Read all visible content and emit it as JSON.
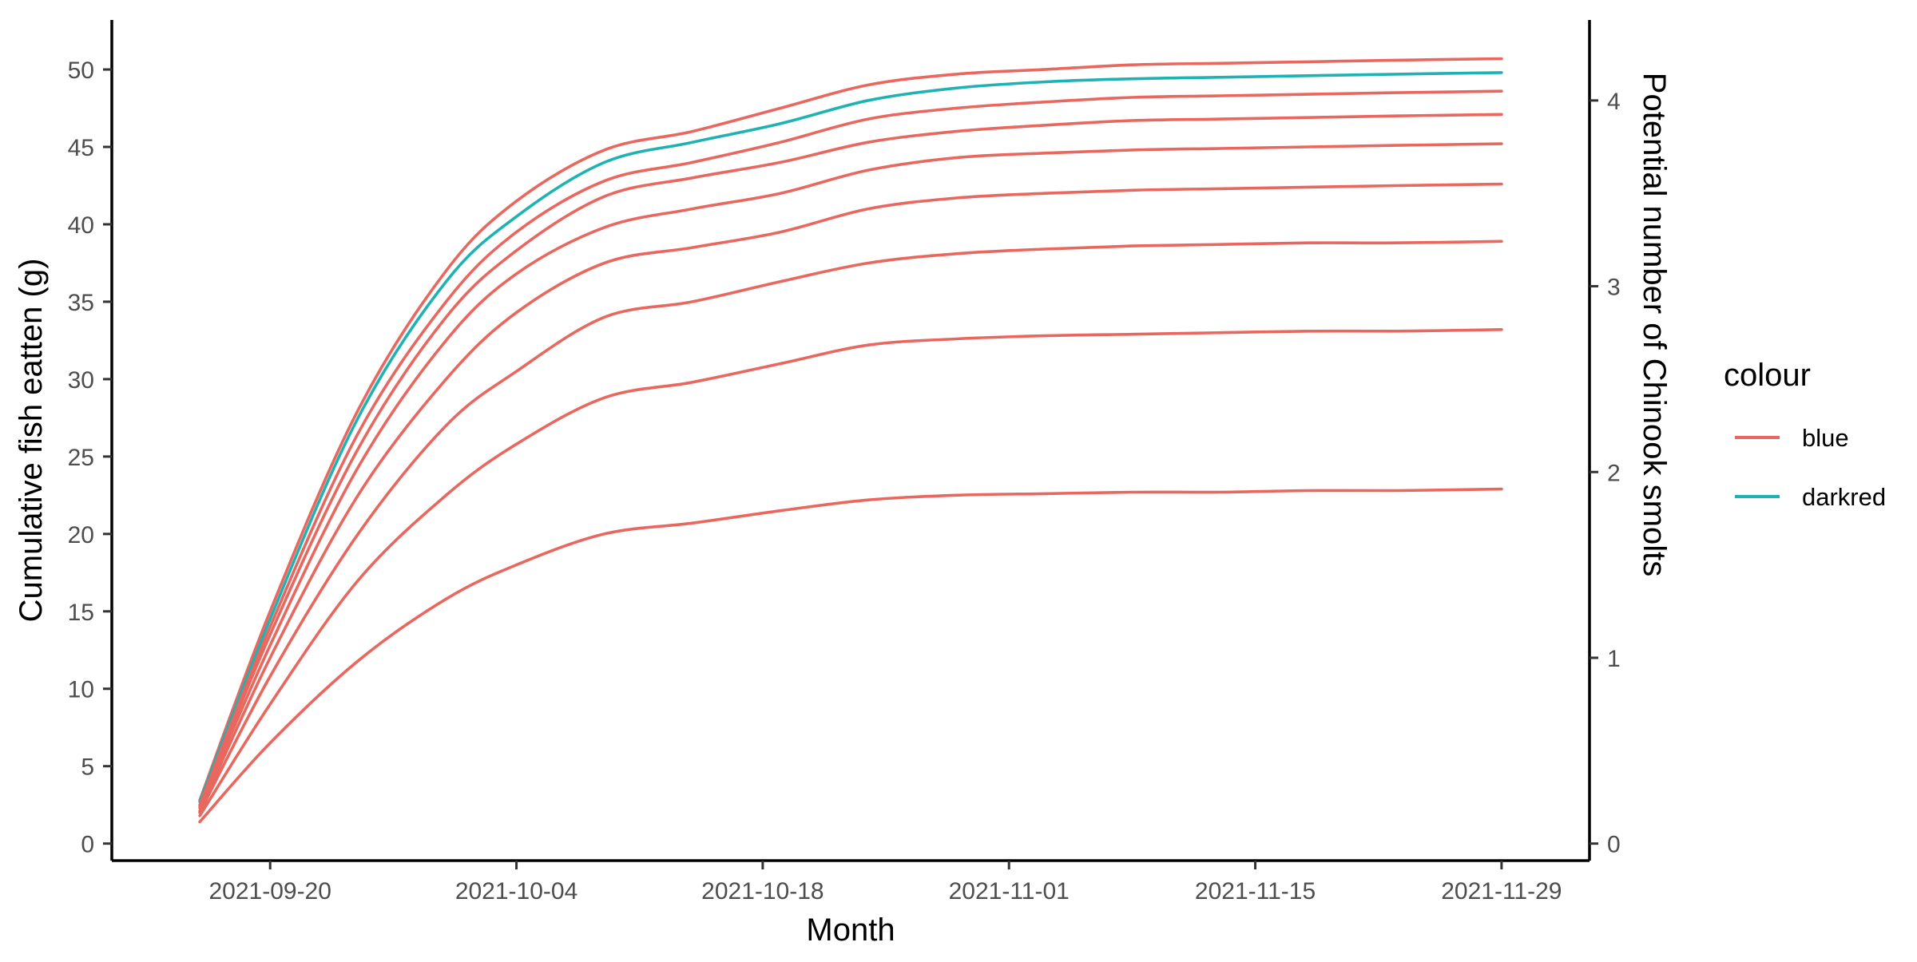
{
  "chart_data": {
    "type": "line",
    "xlabel": "Month",
    "ylabel": "Cumulative fish eatten (g)",
    "y2label": "Potential number of Chinook smolts",
    "x_ticks": [
      "2021-09-20",
      "2021-10-04",
      "2021-10-18",
      "2021-11-01",
      "2021-11-15",
      "2021-11-29"
    ],
    "xlim": [
      "2021-09-11",
      "2021-12-04"
    ],
    "y_ticks": [
      0,
      5,
      10,
      15,
      20,
      25,
      30,
      35,
      40,
      45,
      50
    ],
    "ylim": [
      -1.1,
      53.2
    ],
    "y2_ticks": [
      0,
      1,
      2,
      3,
      4
    ],
    "y2_scale": 12,
    "grid": false,
    "legend": {
      "title": "colour",
      "position": "right",
      "entries": [
        {
          "label": "blue",
          "color": "#E8675F"
        },
        {
          "label": "darkred",
          "color": "#1FB2B2"
        }
      ]
    },
    "x": [
      "2021-09-16",
      "2021-09-20",
      "2021-09-25",
      "2021-09-30",
      "2021-10-04",
      "2021-10-09",
      "2021-10-14",
      "2021-10-19",
      "2021-10-24",
      "2021-10-29",
      "2021-11-03",
      "2021-11-08",
      "2021-11-13",
      "2021-11-18",
      "2021-11-23",
      "2021-11-29"
    ],
    "series": [
      {
        "color": "#E8675F",
        "values": [
          2.8,
          15.0,
          28.0,
          37.0,
          41.5,
          44.8,
          46.0,
          47.5,
          49.0,
          49.7,
          50.0,
          50.3,
          50.4,
          50.5,
          50.6,
          50.7
        ]
      },
      {
        "color": "#1FB2B2",
        "values": [
          2.7,
          14.5,
          27.5,
          36.3,
          40.5,
          44.0,
          45.3,
          46.5,
          48.0,
          48.8,
          49.2,
          49.4,
          49.5,
          49.6,
          49.7,
          49.8
        ]
      },
      {
        "color": "#E8675F",
        "values": [
          2.5,
          14.0,
          26.5,
          35.0,
          39.5,
          42.8,
          44.0,
          45.3,
          46.8,
          47.5,
          47.9,
          48.2,
          48.3,
          48.4,
          48.5,
          48.6
        ]
      },
      {
        "color": "#E8675F",
        "values": [
          2.4,
          13.5,
          25.5,
          34.0,
          38.3,
          41.8,
          43.0,
          44.0,
          45.3,
          46.0,
          46.4,
          46.7,
          46.8,
          46.9,
          47.0,
          47.1
        ]
      },
      {
        "color": "#E8675F",
        "values": [
          2.3,
          12.8,
          24.3,
          32.5,
          36.8,
          39.8,
          41.0,
          42.0,
          43.5,
          44.3,
          44.6,
          44.8,
          44.9,
          45.0,
          45.1,
          45.2
        ]
      },
      {
        "color": "#E8675F",
        "values": [
          2.1,
          12.0,
          22.5,
          30.0,
          34.3,
          37.5,
          38.5,
          39.5,
          41.0,
          41.7,
          42.0,
          42.2,
          42.3,
          42.4,
          42.5,
          42.6
        ]
      },
      {
        "color": "#E8675F",
        "values": [
          2.0,
          10.8,
          20.0,
          27.0,
          30.5,
          34.0,
          35.0,
          36.3,
          37.5,
          38.1,
          38.4,
          38.6,
          38.7,
          38.8,
          38.8,
          38.9
        ]
      },
      {
        "color": "#E8675F",
        "values": [
          1.8,
          9.0,
          17.0,
          22.5,
          25.8,
          28.8,
          29.8,
          31.0,
          32.2,
          32.6,
          32.8,
          32.9,
          33.0,
          33.1,
          33.1,
          33.2
        ]
      },
      {
        "color": "#E8675F",
        "values": [
          1.4,
          6.5,
          11.8,
          15.8,
          18.0,
          20.0,
          20.7,
          21.5,
          22.2,
          22.5,
          22.6,
          22.7,
          22.7,
          22.8,
          22.8,
          22.9
        ]
      }
    ]
  }
}
